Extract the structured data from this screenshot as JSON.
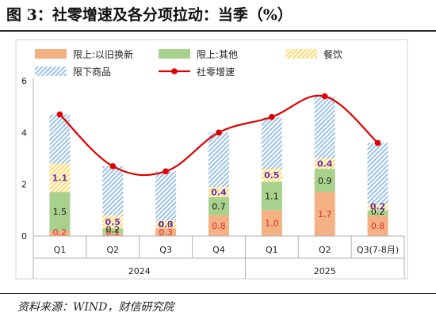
{
  "figure": {
    "title": "图 3：社零增速及各分项拉动：当季（%）",
    "source": "资料来源：WIND，财信研究院"
  },
  "chart_data": {
    "type": "bar",
    "stacked": true,
    "categories": [
      "Q1",
      "Q2",
      "Q3",
      "Q4",
      "Q1",
      "Q2",
      "Q3(7-8月)"
    ],
    "year_groups": [
      {
        "label": "2024",
        "span": [
          0,
          3
        ]
      },
      {
        "label": "2025",
        "span": [
          4,
          6
        ]
      }
    ],
    "ylim": [
      0,
      6
    ],
    "yticks": [
      0,
      2,
      4,
      6
    ],
    "grid": false,
    "legend_position": "top",
    "series": [
      {
        "name": "限上:以旧换新",
        "type": "bar",
        "color": "#f4b183",
        "values": [
          0.2,
          0.1,
          0.3,
          0.8,
          1.0,
          1.7,
          0.8
        ],
        "label_color": "#e03030"
      },
      {
        "name": "限上:其他",
        "type": "bar",
        "color": "#a9d18e",
        "values": [
          1.5,
          0.2,
          0.0,
          0.7,
          1.1,
          0.9,
          0.2
        ],
        "label_color": "#1a1a1a"
      },
      {
        "name": "餐饮",
        "type": "bar",
        "color": "#ffd966",
        "pattern": "stripe",
        "values": [
          1.1,
          0.5,
          0.3,
          0.4,
          0.5,
          0.4,
          0.2
        ],
        "label_color": "#7030a0"
      },
      {
        "name": "限下商品",
        "type": "bar",
        "color": "#9dc3e6",
        "pattern": "stripe",
        "values": [
          1.9,
          1.9,
          1.9,
          2.1,
          2.0,
          2.4,
          2.4
        ],
        "label_color": null
      },
      {
        "name": "社零增速",
        "type": "line",
        "color": "#e00000",
        "values": [
          4.7,
          2.7,
          2.5,
          4.0,
          4.6,
          5.4,
          3.6
        ]
      }
    ]
  }
}
